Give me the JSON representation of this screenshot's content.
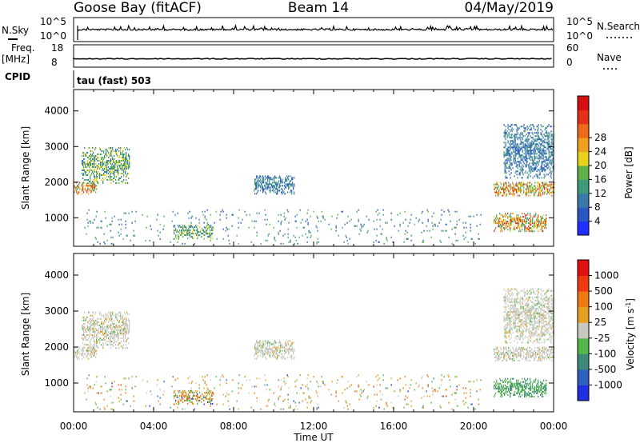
{
  "header": {
    "station": "Goose Bay (fitACF)",
    "beam": "Beam 14",
    "date": "04/May/2019"
  },
  "panels": {
    "nsky": {
      "label": "N.Sky",
      "right_label": "N.Search",
      "ticks_left": [
        "10^5",
        "10^0"
      ],
      "ticks_right": [
        "10^5",
        "10^0"
      ]
    },
    "freq": {
      "label_top": "Freq.",
      "label_unit": "[MHz]",
      "right_label": "Nave",
      "ticks_left": [
        "18",
        "8"
      ],
      "ticks_right": [
        "60",
        "0"
      ]
    },
    "cpid": {
      "label": "CPID",
      "value": "tau (fast) 503"
    }
  },
  "chart_data": [
    {
      "type": "heatmap",
      "quantity": "Power",
      "ylabel": "Slant Range [km]",
      "ylim": [
        200,
        4600
      ],
      "yticks": [
        "1000",
        "2000",
        "3000",
        "4000"
      ],
      "xlim_hours": [
        0,
        24
      ],
      "colorbar": {
        "label": "Power [dB]",
        "ticks": [
          "4",
          "8",
          "12",
          "16",
          "20",
          "24",
          "28"
        ],
        "colors": [
          "#1f2fff",
          "#2a57c4",
          "#3a7aa8",
          "#3d9a7a",
          "#5fb04a",
          "#e8d21e",
          "#f0a020",
          "#ee6a18",
          "#e53018",
          "#d50f10"
        ]
      },
      "regions": [
        {
          "t": [
            0.0,
            1.2
          ],
          "r": [
            1650,
            2000
          ],
          "level": "high"
        },
        {
          "t": [
            0.4,
            2.8
          ],
          "r": [
            1950,
            2950
          ],
          "level": "mid"
        },
        {
          "t": [
            9.0,
            11.0
          ],
          "r": [
            1650,
            2150
          ],
          "level": "low"
        },
        {
          "t": [
            5.0,
            7.0
          ],
          "r": [
            400,
            800
          ],
          "level": "mid"
        },
        {
          "t": [
            21.0,
            24.0
          ],
          "r": [
            1600,
            2000
          ],
          "level": "high"
        },
        {
          "t": [
            21.0,
            23.6
          ],
          "r": [
            600,
            1100
          ],
          "level": "high"
        },
        {
          "t": [
            21.5,
            24.0
          ],
          "r": [
            2100,
            3600
          ],
          "level": "low"
        },
        {
          "t": [
            0.5,
            20.5
          ],
          "r": [
            250,
            1200
          ],
          "level": "scatter"
        }
      ]
    },
    {
      "type": "heatmap",
      "quantity": "Velocity",
      "ylabel": "Slant Range [km]",
      "ylim": [
        200,
        4600
      ],
      "yticks": [
        "1000",
        "2000",
        "3000",
        "4000"
      ],
      "xlim_hours": [
        0,
        24
      ],
      "xlabel": "Time UT",
      "xticks": [
        "00:00",
        "04:00",
        "08:00",
        "12:00",
        "16:00",
        "20:00",
        "00:00"
      ],
      "colorbar": {
        "label": "Velocity [m s",
        "label_sup": "-1",
        "label_end": "]",
        "ticks": [
          "1000",
          "500",
          "100",
          "25",
          "-25",
          "-100",
          "-500",
          "-1000"
        ],
        "colors": [
          "#1e2fe0",
          "#2e60c0",
          "#3e8a7a",
          "#52b84a",
          "#c8c8c0",
          "#e6a020",
          "#f07a10",
          "#ee3a10",
          "#e01010"
        ]
      }
    }
  ]
}
